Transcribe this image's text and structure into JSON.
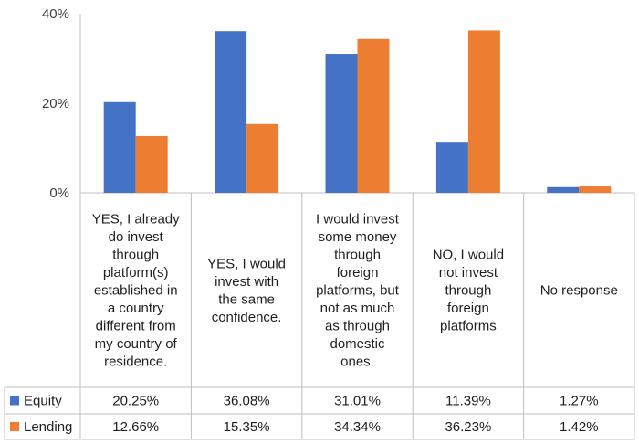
{
  "chart_data": {
    "type": "bar",
    "categories": [
      "YES, I already do invest through platform(s) established in a country different from my country of residence.",
      "YES, I would invest with the same confidence.",
      "I would invest some money through foreign platforms, but not as much as through domestic ones.",
      "NO, I would not invest through foreign platforms",
      "No response"
    ],
    "category_lines": [
      [
        "YES, I already",
        "do invest",
        "through",
        "platform(s)",
        "established in",
        "a country",
        "different from",
        "my country of",
        "residence."
      ],
      [
        "YES, I would",
        "invest with",
        "the same",
        "confidence."
      ],
      [
        "I would invest",
        "some money",
        "through",
        "foreign",
        "platforms, but",
        "not as much",
        "as through",
        "domestic",
        "ones."
      ],
      [
        "NO, I would",
        "not invest",
        "through",
        "foreign",
        "platforms"
      ],
      [
        "No response"
      ]
    ],
    "series": [
      {
        "name": "Equity",
        "color": "#4472c4",
        "values": [
          20.25,
          36.08,
          31.01,
          11.39,
          1.27
        ],
        "labels": [
          "20.25%",
          "36.08%",
          "31.01%",
          "11.39%",
          "1.27%"
        ]
      },
      {
        "name": "Lending",
        "color": "#ed7d31",
        "values": [
          12.66,
          15.35,
          34.34,
          36.23,
          1.42
        ],
        "labels": [
          "12.66%",
          "15.35%",
          "34.34%",
          "36.23%",
          "1.42%"
        ]
      }
    ],
    "yticks": [
      0,
      20,
      40
    ],
    "ytick_labels": [
      "0%",
      "20%",
      "40%"
    ],
    "ylim": [
      0,
      40
    ],
    "gridlines": false,
    "legend": "data-table"
  }
}
